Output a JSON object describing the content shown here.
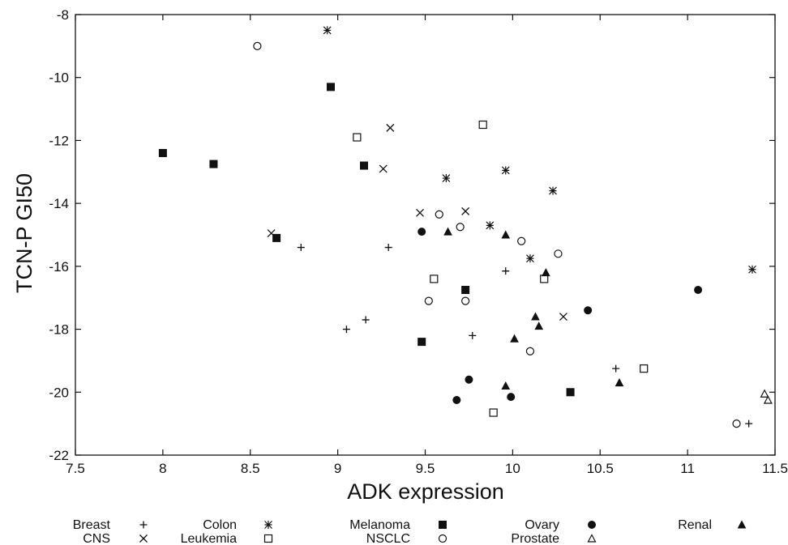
{
  "chart_data": {
    "type": "scatter",
    "title": "",
    "xlabel": "ADK expression",
    "ylabel": "TCN-P GI50",
    "xlim": [
      7.5,
      11.5
    ],
    "ylim": [
      -22,
      -8
    ],
    "xticks": [
      "7.5",
      "8",
      "8.5",
      "9",
      "9.5",
      "10",
      "10.5",
      "11",
      "11.5"
    ],
    "yticks": [
      "-8",
      "-10",
      "-12",
      "-14",
      "-16",
      "-18",
      "-20",
      "-22"
    ],
    "grid": false,
    "legend_position": "bottom",
    "series": [
      {
        "name": "Breast",
        "marker": "plus",
        "points": [
          [
            8.79,
            -15.4
          ],
          [
            9.29,
            -15.4
          ],
          [
            9.05,
            -18.0
          ],
          [
            9.16,
            -17.7
          ],
          [
            9.77,
            -18.2
          ],
          [
            9.96,
            -16.15
          ],
          [
            10.59,
            -19.25
          ],
          [
            11.35,
            -21.0
          ]
        ]
      },
      {
        "name": "CNS",
        "marker": "cross",
        "points": [
          [
            8.62,
            -14.95
          ],
          [
            9.26,
            -12.9
          ],
          [
            9.3,
            -11.6
          ],
          [
            9.47,
            -14.3
          ],
          [
            9.73,
            -14.25
          ],
          [
            10.29,
            -17.6
          ]
        ]
      },
      {
        "name": "Colon",
        "marker": "asterisk",
        "points": [
          [
            8.94,
            -8.5
          ],
          [
            9.62,
            -13.2
          ],
          [
            9.87,
            -14.7
          ],
          [
            9.96,
            -12.95
          ],
          [
            10.1,
            -15.75
          ],
          [
            10.23,
            -13.6
          ],
          [
            11.37,
            -16.1
          ]
        ]
      },
      {
        "name": "Leukemia",
        "marker": "open-square",
        "points": [
          [
            9.11,
            -11.9
          ],
          [
            9.83,
            -11.5
          ],
          [
            9.55,
            -16.4
          ],
          [
            10.18,
            -16.4
          ],
          [
            9.89,
            -20.65
          ],
          [
            10.75,
            -19.25
          ]
        ]
      },
      {
        "name": "Melanoma",
        "marker": "filled-square",
        "points": [
          [
            8.0,
            -12.4
          ],
          [
            8.29,
            -12.75
          ],
          [
            8.65,
            -15.1
          ],
          [
            8.96,
            -10.3
          ],
          [
            9.15,
            -12.8
          ],
          [
            9.73,
            -16.75
          ],
          [
            9.48,
            -18.4
          ],
          [
            10.33,
            -20.0
          ]
        ]
      },
      {
        "name": "NSCLC",
        "marker": "open-circle",
        "points": [
          [
            8.54,
            -9.0
          ],
          [
            9.58,
            -14.35
          ],
          [
            9.7,
            -14.75
          ],
          [
            10.05,
            -15.2
          ],
          [
            10.26,
            -15.6
          ],
          [
            9.52,
            -17.1
          ],
          [
            9.73,
            -17.1
          ],
          [
            10.1,
            -18.7
          ],
          [
            11.28,
            -21.0
          ]
        ]
      },
      {
        "name": "Ovary",
        "marker": "filled-circle",
        "points": [
          [
            9.48,
            -14.9
          ],
          [
            10.43,
            -17.4
          ],
          [
            11.06,
            -16.75
          ],
          [
            9.75,
            -19.6
          ],
          [
            9.68,
            -20.25
          ],
          [
            9.99,
            -20.15
          ]
        ]
      },
      {
        "name": "Prostate",
        "marker": "open-triangle",
        "points": [
          [
            11.44,
            -20.05
          ],
          [
            11.46,
            -20.25
          ]
        ]
      },
      {
        "name": "Renal",
        "marker": "filled-triangle",
        "points": [
          [
            9.63,
            -14.9
          ],
          [
            9.96,
            -15.0
          ],
          [
            10.19,
            -16.2
          ],
          [
            10.13,
            -17.6
          ],
          [
            10.15,
            -17.9
          ],
          [
            10.01,
            -18.3
          ],
          [
            9.96,
            -19.8
          ],
          [
            10.61,
            -19.7
          ]
        ]
      }
    ]
  }
}
